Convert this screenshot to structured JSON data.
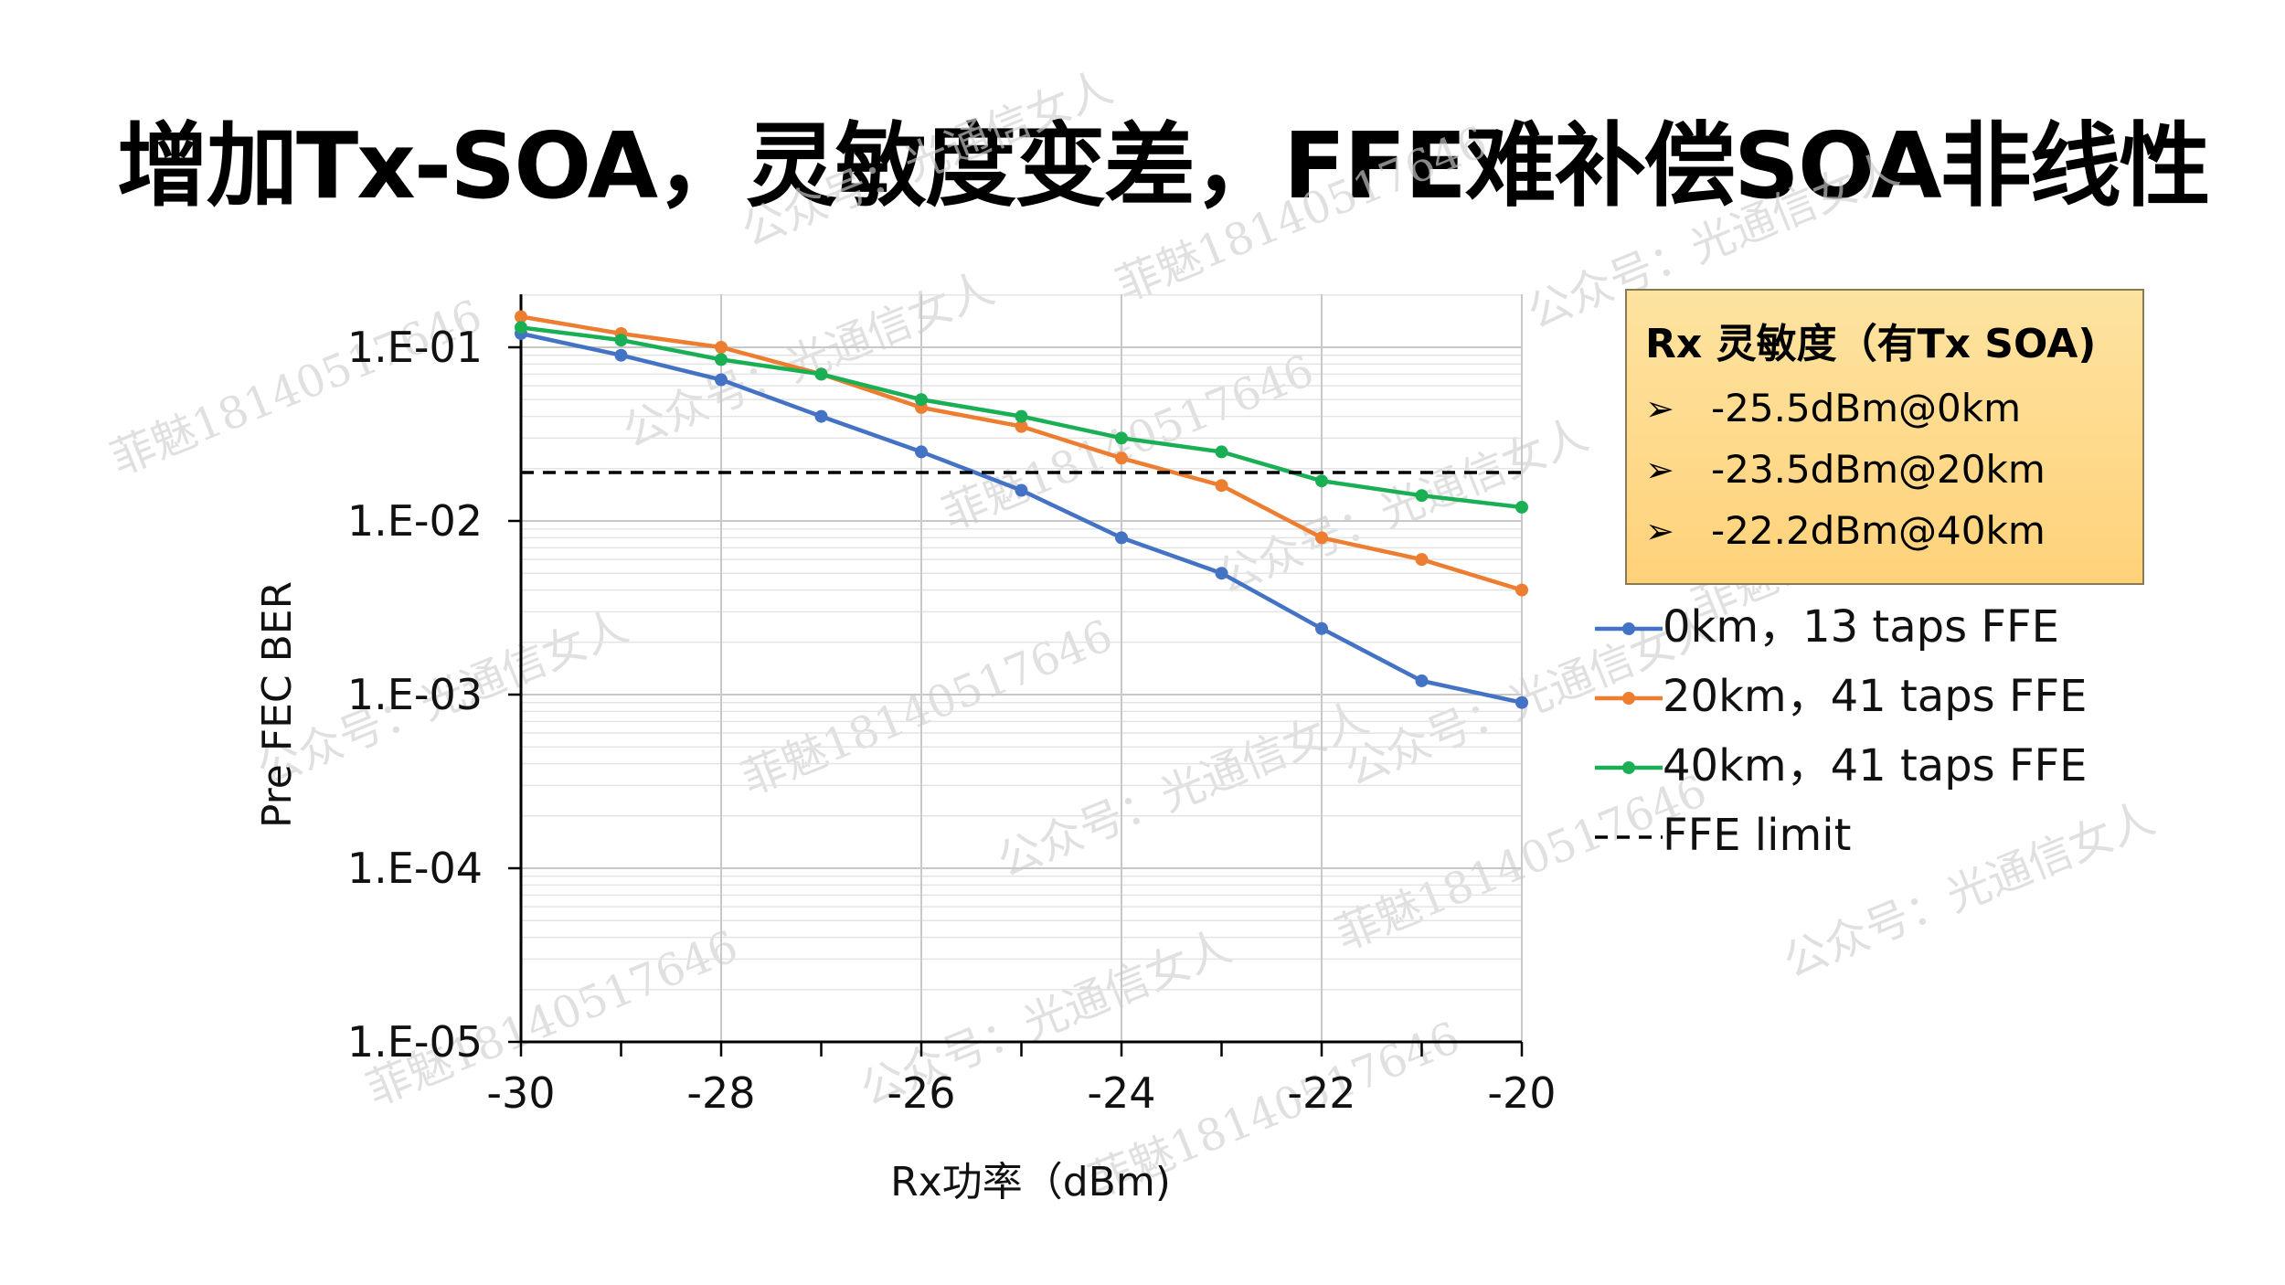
{
  "slide_title": "增加Tx-SOA，灵敏度变差，FFE难补偿SOA非线性",
  "sensitivity_box": {
    "title": "Rx 灵敏度（有Tx SOA)",
    "bullet_icon": "arrow-bullet-icon",
    "items": [
      "-25.5dBm@0km",
      "-23.5dBm@20km",
      "-22.2dBm@40km"
    ]
  },
  "watermarks": [
    "公众号：光通信女人",
    "菲魅18140517646"
  ],
  "chart_data": {
    "type": "line",
    "xlabel": "Rx功率（dBm)",
    "ylabel": "Pre FEC BER",
    "xlim": [
      -30,
      -20
    ],
    "ylim": [
      1e-05,
      0.2
    ],
    "y_scale": "log",
    "x_ticks": [
      -30,
      -28,
      -26,
      -24,
      -22,
      -20
    ],
    "x_tick_labels": [
      "-30",
      "-28",
      "-26",
      "-24",
      "-22",
      "-20"
    ],
    "y_ticks": [
      0.1,
      0.01,
      0.001,
      0.0001,
      1e-05
    ],
    "y_tick_labels": [
      "1.E-01",
      "1.E-02",
      "1.E-03",
      "1.E-04",
      "1.E-05"
    ],
    "grid": true,
    "legend_position": "right",
    "x": [
      -30,
      -29,
      -28,
      -27,
      -26,
      -25,
      -24,
      -23,
      -22,
      -21,
      -20
    ],
    "series": [
      {
        "name": "0km，13 taps FFE",
        "color": "#4472c4",
        "style": "solid-marker",
        "values": [
          0.12,
          0.09,
          0.065,
          0.04,
          0.025,
          0.015,
          0.008,
          0.005,
          0.0024,
          0.0012,
          0.0009
        ]
      },
      {
        "name": "20km，41 taps FFE",
        "color": "#ed7d31",
        "style": "solid-marker",
        "values": [
          0.15,
          0.12,
          0.1,
          0.07,
          0.045,
          0.035,
          0.023,
          0.016,
          0.008,
          0.006,
          0.004
        ]
      },
      {
        "name": "40km，41 taps FFE",
        "color": "#1aaf54",
        "style": "solid-marker",
        "values": [
          0.13,
          0.11,
          0.085,
          0.07,
          0.05,
          0.04,
          0.03,
          0.025,
          0.017,
          0.014,
          0.012
        ]
      },
      {
        "name": "FFE limit",
        "color": "#000000",
        "style": "dashed",
        "values": [
          0.019,
          0.019,
          0.019,
          0.019,
          0.019,
          0.019,
          0.019,
          0.019,
          0.019,
          0.019,
          0.019
        ]
      }
    ]
  }
}
